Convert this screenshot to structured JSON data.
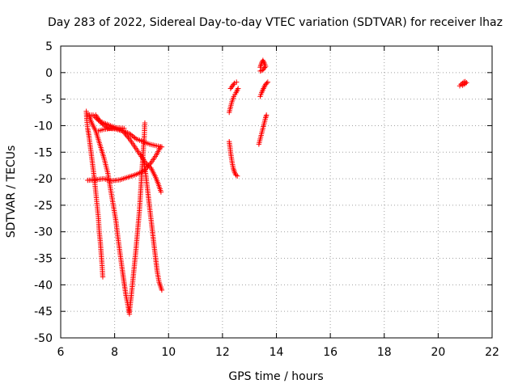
{
  "chart_data": {
    "type": "scatter",
    "title": "Day 283 of 2022, Sidereal Day-to-day VTEC variation (SDTVAR) for receiver lhaz",
    "xlabel": "GPS time / hours",
    "ylabel": "SDTVAR / TECUs",
    "xlim": [
      6,
      22
    ],
    "ylim": [
      -50,
      5
    ],
    "x_ticks": [
      6,
      8,
      10,
      12,
      14,
      16,
      18,
      20,
      22
    ],
    "y_ticks": [
      5,
      0,
      -5,
      -10,
      -15,
      -20,
      -25,
      -30,
      -35,
      -40,
      -45,
      -50
    ],
    "grid": true,
    "marker": "plus",
    "color": "#ff0000",
    "series": [
      {
        "points": [
          [
            6.95,
            -7.3
          ],
          [
            6.97,
            -9.0
          ],
          [
            7.0,
            -10.5
          ],
          [
            7.05,
            -12.0
          ],
          [
            7.1,
            -14.0
          ],
          [
            7.15,
            -16.0
          ],
          [
            7.2,
            -18.0
          ],
          [
            7.25,
            -20.0
          ],
          [
            7.3,
            -22.5
          ],
          [
            7.35,
            -25.0
          ],
          [
            7.4,
            -27.5
          ],
          [
            7.43,
            -30.0
          ],
          [
            7.47,
            -32.0
          ],
          [
            7.5,
            -34.0
          ],
          [
            7.53,
            -36.0
          ],
          [
            7.56,
            -38.5
          ]
        ]
      },
      {
        "points": [
          [
            7.05,
            -8.0
          ],
          [
            7.15,
            -9.5
          ],
          [
            7.3,
            -11.0
          ],
          [
            7.45,
            -13.5
          ],
          [
            7.6,
            -16.0
          ],
          [
            7.75,
            -19.0
          ],
          [
            7.85,
            -22.0
          ],
          [
            7.95,
            -25.0
          ],
          [
            8.05,
            -28.0
          ],
          [
            8.12,
            -31.0
          ],
          [
            8.2,
            -34.0
          ],
          [
            8.28,
            -37.0
          ],
          [
            8.35,
            -39.5
          ],
          [
            8.42,
            -42.0
          ],
          [
            8.5,
            -44.0
          ],
          [
            8.55,
            -45.5
          ]
        ]
      },
      {
        "points": [
          [
            8.55,
            -45.0
          ],
          [
            8.62,
            -42.0
          ],
          [
            8.7,
            -38.0
          ],
          [
            8.78,
            -34.0
          ],
          [
            8.85,
            -30.0
          ],
          [
            8.92,
            -26.0
          ],
          [
            8.97,
            -22.0
          ],
          [
            9.02,
            -18.0
          ],
          [
            9.06,
            -15.0
          ],
          [
            9.1,
            -12.0
          ],
          [
            9.12,
            -9.5
          ]
        ]
      },
      {
        "points": [
          [
            9.05,
            -16.0
          ],
          [
            9.15,
            -19.0
          ],
          [
            9.22,
            -22.0
          ],
          [
            9.3,
            -25.5
          ],
          [
            9.37,
            -28.5
          ],
          [
            9.45,
            -32.0
          ],
          [
            9.52,
            -35.0
          ],
          [
            9.58,
            -37.5
          ],
          [
            9.65,
            -39.5
          ],
          [
            9.75,
            -41.0
          ]
        ]
      },
      {
        "points": [
          [
            7.0,
            -8.0
          ],
          [
            7.2,
            -8.0
          ],
          [
            7.4,
            -9.0
          ],
          [
            7.6,
            -9.5
          ],
          [
            7.85,
            -10.0
          ],
          [
            8.1,
            -10.5
          ],
          [
            8.35,
            -11.0
          ],
          [
            8.55,
            -11.5
          ],
          [
            8.8,
            -12.5
          ],
          [
            9.05,
            -13.0
          ],
          [
            9.3,
            -13.5
          ],
          [
            9.55,
            -13.8
          ],
          [
            9.75,
            -14.0
          ]
        ]
      },
      {
        "points": [
          [
            7.0,
            -20.3
          ],
          [
            7.3,
            -20.2
          ],
          [
            7.6,
            -20.0
          ],
          [
            7.9,
            -20.4
          ],
          [
            8.2,
            -20.2
          ],
          [
            8.5,
            -19.7
          ],
          [
            8.8,
            -19.2
          ],
          [
            9.1,
            -18.5
          ],
          [
            9.35,
            -17.0
          ],
          [
            9.55,
            -15.5
          ],
          [
            9.7,
            -14.0
          ]
        ]
      },
      {
        "points": [
          [
            7.3,
            -8.0
          ],
          [
            7.5,
            -9.5
          ],
          [
            7.75,
            -10.5
          ],
          [
            8.0,
            -10.6
          ],
          [
            8.3,
            -11.0
          ],
          [
            8.55,
            -12.5
          ],
          [
            8.75,
            -14.0
          ],
          [
            8.95,
            -15.5
          ],
          [
            9.15,
            -17.0
          ],
          [
            9.35,
            -18.0
          ],
          [
            9.5,
            -19.5
          ],
          [
            9.62,
            -21.0
          ],
          [
            9.72,
            -22.5
          ]
        ]
      },
      {
        "points": [
          [
            7.4,
            -11.0
          ],
          [
            7.6,
            -10.7
          ],
          [
            7.85,
            -10.5
          ],
          [
            8.1,
            -10.4
          ],
          [
            8.35,
            -10.5
          ]
        ]
      },
      {
        "points": [
          [
            12.25,
            -13.0
          ],
          [
            12.28,
            -14.0
          ],
          [
            12.3,
            -15.0
          ],
          [
            12.33,
            -16.0
          ],
          [
            12.36,
            -17.0
          ],
          [
            12.4,
            -18.0
          ],
          [
            12.45,
            -18.8
          ],
          [
            12.5,
            -19.3
          ],
          [
            12.55,
            -19.5
          ]
        ]
      },
      {
        "points": [
          [
            12.25,
            -7.5
          ],
          [
            12.3,
            -6.5
          ],
          [
            12.35,
            -5.5
          ],
          [
            12.42,
            -4.5
          ],
          [
            12.5,
            -3.8
          ],
          [
            12.58,
            -3.0
          ]
        ]
      },
      {
        "points": [
          [
            12.3,
            -3.0
          ],
          [
            12.37,
            -2.5
          ],
          [
            12.44,
            -2.0
          ],
          [
            12.52,
            -1.8
          ]
        ]
      },
      {
        "points": [
          [
            13.35,
            -13.5
          ],
          [
            13.4,
            -12.5
          ],
          [
            13.45,
            -11.5
          ],
          [
            13.5,
            -10.5
          ],
          [
            13.55,
            -9.5
          ],
          [
            13.6,
            -8.5
          ],
          [
            13.63,
            -8.0
          ]
        ]
      },
      {
        "points": [
          [
            13.4,
            -4.5
          ],
          [
            13.45,
            -3.8
          ],
          [
            13.52,
            -3.0
          ],
          [
            13.6,
            -2.2
          ],
          [
            13.68,
            -1.8
          ]
        ]
      },
      {
        "points": [
          [
            13.4,
            1.0
          ],
          [
            13.45,
            1.8
          ],
          [
            13.5,
            2.3
          ],
          [
            13.55,
            1.8
          ],
          [
            13.6,
            1.2
          ],
          [
            13.5,
            0.5
          ],
          [
            13.4,
            0.3
          ]
        ]
      },
      {
        "points": [
          [
            20.8,
            -2.5
          ],
          [
            20.85,
            -2.2
          ],
          [
            20.9,
            -2.0
          ],
          [
            20.95,
            -1.8
          ],
          [
            21.0,
            -1.7
          ],
          [
            21.05,
            -1.9
          ],
          [
            20.9,
            -2.4
          ]
        ]
      }
    ]
  }
}
